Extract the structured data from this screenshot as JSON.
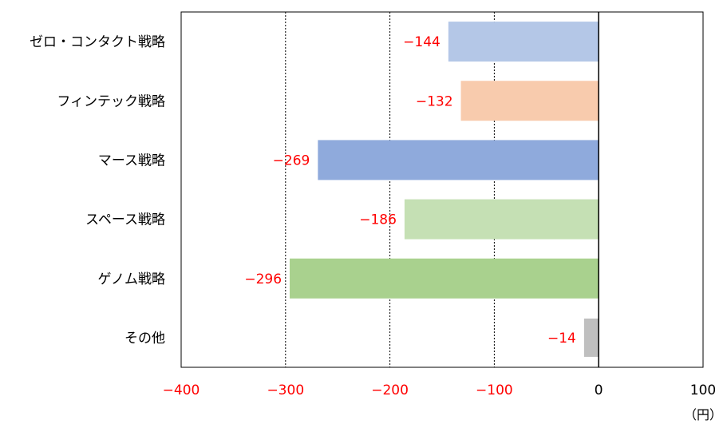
{
  "chart_data": {
    "type": "bar",
    "orientation": "horizontal",
    "categories": [
      "ゼロ・コンタクト戦略",
      "フィンテック戦略",
      "マース戦略",
      "スペース戦略",
      "ゲノム戦略",
      "その他"
    ],
    "values": [
      -144,
      -132,
      -269,
      -186,
      -296,
      -14
    ],
    "data_labels": [
      "−144",
      "−132",
      "−269",
      "−186",
      "−296",
      "−14"
    ],
    "bar_colors": [
      "#b4c7e7",
      "#f8cbad",
      "#8faadc",
      "#c5e0b4",
      "#a9d18e",
      "#bfbfbf"
    ],
    "data_label_color": "#ff0000",
    "xlim": [
      -400,
      100
    ],
    "x_ticks": [
      -400,
      -300,
      -200,
      -100,
      0,
      100
    ],
    "x_tick_labels": [
      "−400",
      "−300",
      "−200",
      "−100",
      "0",
      "100"
    ],
    "x_tick_colors": [
      "#ff0000",
      "#ff0000",
      "#ff0000",
      "#ff0000",
      "#000000",
      "#000000"
    ],
    "unit_label": "（円）",
    "gridlines": "vertical-dotted",
    "legend": "none"
  }
}
